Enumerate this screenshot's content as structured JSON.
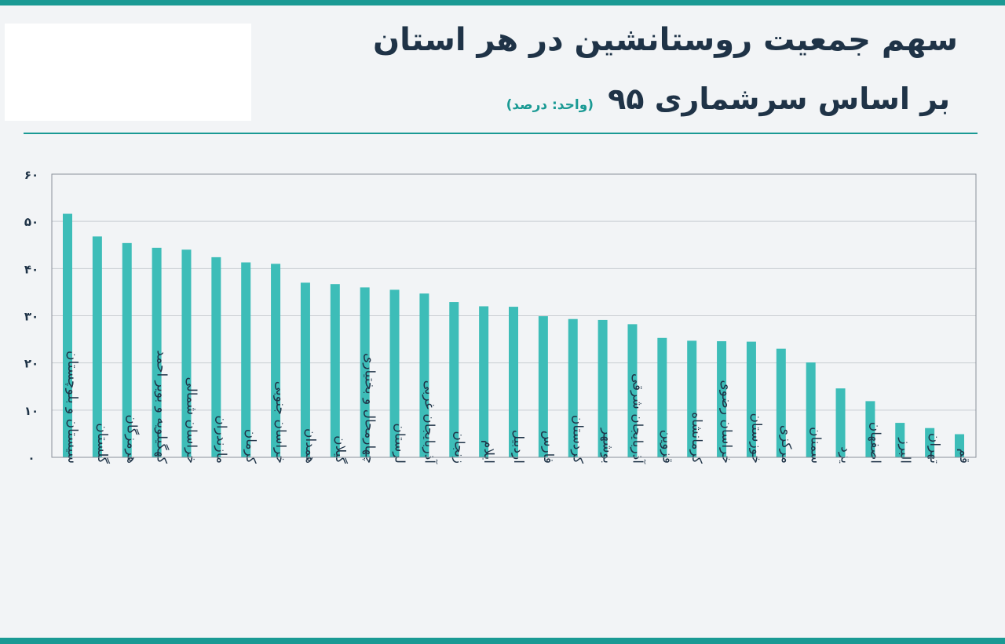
{
  "title": "سهم جمعیت روستانشین در هر استان",
  "subtitle": "بر اساس سرشماری ۹۵",
  "unit": "(واحد: درصد)",
  "colors": {
    "accent": "#1a9a94",
    "bar": "#3dbdb8",
    "text": "#1f3347",
    "grid": "#c9cdd2"
  },
  "chart_data": {
    "type": "bar",
    "ylim": [
      0,
      60
    ],
    "yticks": [
      0,
      10,
      20,
      30,
      40,
      50,
      60
    ],
    "ytick_labels": [
      "۰",
      "۱۰",
      "۲۰",
      "۳۰",
      "۴۰",
      "۵۰",
      "۶۰"
    ],
    "grid": true,
    "categories": [
      "سیستان و بلوچستان",
      "گلستان",
      "هرمزگان",
      "کهگیلویه و بویر احمد",
      "خراسان شمالی",
      "مازندران",
      "کرمان",
      "خراسان جنوبی",
      "همدان",
      "گیلان",
      "چهارمحال و بختیاری",
      "لرستان",
      "آذربایجان غربی",
      "زنجان",
      "ایلام",
      "اردبیل",
      "فارس",
      "کردستان",
      "بوشهر",
      "آذربایجان شرقی",
      "قزوین",
      "کرمانشاه",
      "خراسان رضوی",
      "خوزستان",
      "مرکزی",
      "سمنان",
      "یزد",
      "اصفهان",
      "البرز",
      "تهران",
      "قم"
    ],
    "values": [
      51.6,
      46.8,
      45.4,
      44.4,
      44.0,
      42.4,
      41.3,
      41.0,
      37.0,
      36.7,
      36.0,
      35.5,
      34.7,
      32.9,
      32.0,
      31.9,
      29.9,
      29.3,
      29.1,
      28.2,
      25.3,
      24.7,
      24.6,
      24.5,
      23.0,
      20.1,
      14.6,
      11.9,
      7.3,
      6.2,
      4.9
    ]
  }
}
